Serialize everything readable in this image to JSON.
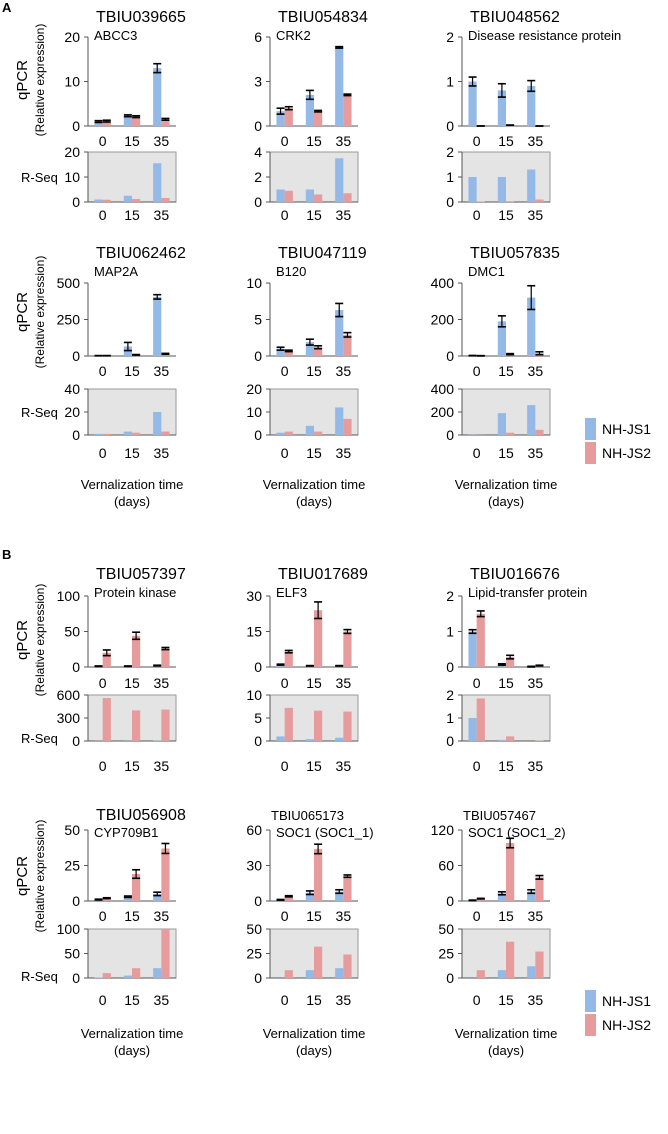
{
  "figure": {
    "time_points": [
      "0",
      "15",
      "35"
    ],
    "x_label_line1": "Vernalization time",
    "x_label_line2": "(days)",
    "qpcr_label": "qPCR",
    "qpcr_sublabel": "(Relative expression)",
    "rseq_label": "R-Seq",
    "legend": [
      {
        "name": "NH-JS1",
        "color": "#94b9e6"
      },
      {
        "name": "NH-JS2",
        "color": "#e69c9c"
      }
    ],
    "colors": {
      "js1": "#94b9e6",
      "js2": "#e69c9c",
      "rseq_bg": "#e4e4e4",
      "error": "#000000"
    }
  },
  "panels": [
    {
      "label": "A"
    },
    {
      "label": "B"
    }
  ],
  "chart_data": [
    {
      "type": "bar",
      "panel": "A",
      "gene_id": "TBIU039665",
      "gene_name": "ABCC3",
      "categories": [
        "0",
        "15",
        "35"
      ],
      "qpcr": {
        "ylim": [
          0,
          20
        ],
        "ticks": [
          0,
          10,
          20
        ],
        "series": [
          {
            "name": "NH-JS1",
            "values": [
              1.0,
              2.3,
              13.0
            ],
            "errors": [
              0.2,
              0.2,
              1.0
            ]
          },
          {
            "name": "NH-JS2",
            "values": [
              1.1,
              2.1,
              1.5
            ],
            "errors": [
              0.2,
              0.2,
              0.2
            ]
          }
        ]
      },
      "rseq": {
        "ylim": [
          0,
          20
        ],
        "ticks": [
          0,
          10,
          20
        ],
        "series": [
          {
            "name": "NH-JS1",
            "values": [
              1.0,
              2.5,
              15.5
            ]
          },
          {
            "name": "NH-JS2",
            "values": [
              0.9,
              1.2,
              1.6
            ]
          }
        ]
      }
    },
    {
      "type": "bar",
      "panel": "A",
      "gene_id": "TBIU054834",
      "gene_name": "CRK2",
      "categories": [
        "0",
        "15",
        "35"
      ],
      "qpcr": {
        "ylim": [
          0,
          6
        ],
        "ticks": [
          0,
          3,
          6
        ],
        "series": [
          {
            "name": "NH-JS1",
            "values": [
              1.0,
              2.1,
              5.3
            ],
            "errors": [
              0.2,
              0.3,
              0.05
            ]
          },
          {
            "name": "NH-JS2",
            "values": [
              1.2,
              1.0,
              2.1
            ],
            "errors": [
              0.1,
              0.05,
              0.05
            ]
          }
        ]
      },
      "rseq": {
        "ylim": [
          0,
          4
        ],
        "ticks": [
          0,
          2,
          4
        ],
        "series": [
          {
            "name": "NH-JS1",
            "values": [
              1.0,
              1.0,
              3.5
            ]
          },
          {
            "name": "NH-JS2",
            "values": [
              0.9,
              0.6,
              0.7
            ]
          }
        ]
      }
    },
    {
      "type": "bar",
      "panel": "A",
      "gene_id": "TBIU048562",
      "gene_name": "Disease resistance protein",
      "categories": [
        "0",
        "15",
        "35"
      ],
      "qpcr": {
        "ylim": [
          0,
          2
        ],
        "ticks": [
          0,
          1,
          2
        ],
        "series": [
          {
            "name": "NH-JS1",
            "values": [
              1.0,
              0.8,
              0.9
            ],
            "errors": [
              0.1,
              0.15,
              0.12
            ]
          },
          {
            "name": "NH-JS2",
            "values": [
              0.0,
              0.02,
              0.0
            ],
            "errors": [
              0,
              0,
              0
            ]
          }
        ]
      },
      "rseq": {
        "ylim": [
          0,
          2
        ],
        "ticks": [
          0,
          1,
          2
        ],
        "series": [
          {
            "name": "NH-JS1",
            "values": [
              1.0,
              1.0,
              1.3
            ]
          },
          {
            "name": "NH-JS2",
            "values": [
              0.02,
              0.03,
              0.1
            ]
          }
        ]
      }
    },
    {
      "type": "bar",
      "panel": "A",
      "gene_id": "TBIU062462",
      "gene_name": "MAP2A",
      "categories": [
        "0",
        "15",
        "35"
      ],
      "qpcr": {
        "ylim": [
          0,
          500
        ],
        "ticks": [
          0,
          250,
          500
        ],
        "series": [
          {
            "name": "NH-JS1",
            "values": [
              2,
              65,
              405
            ],
            "errors": [
              1,
              28,
              15
            ]
          },
          {
            "name": "NH-JS2",
            "values": [
              2,
              8,
              15
            ],
            "errors": [
              1,
              2,
              3
            ]
          }
        ]
      },
      "rseq": {
        "ylim": [
          0,
          40
        ],
        "ticks": [
          0,
          20,
          40
        ],
        "series": [
          {
            "name": "NH-JS1",
            "values": [
              1,
              3,
              20
            ]
          },
          {
            "name": "NH-JS2",
            "values": [
              1,
              2,
              3
            ]
          }
        ]
      }
    },
    {
      "type": "bar",
      "panel": "A",
      "gene_id": "TBIU047119",
      "gene_name": "B120",
      "categories": [
        "0",
        "15",
        "35"
      ],
      "qpcr": {
        "ylim": [
          0,
          10
        ],
        "ticks": [
          0,
          5,
          10
        ],
        "series": [
          {
            "name": "NH-JS1",
            "values": [
              1.0,
              1.9,
              6.3
            ],
            "errors": [
              0.2,
              0.4,
              0.9
            ]
          },
          {
            "name": "NH-JS2",
            "values": [
              0.7,
              1.2,
              2.9
            ],
            "errors": [
              0.1,
              0.2,
              0.3
            ]
          }
        ]
      },
      "rseq": {
        "ylim": [
          0,
          20
        ],
        "ticks": [
          0,
          10,
          20
        ],
        "series": [
          {
            "name": "NH-JS1",
            "values": [
              1,
              4,
              12
            ]
          },
          {
            "name": "NH-JS2",
            "values": [
              1.5,
              1.5,
              7
            ]
          }
        ]
      }
    },
    {
      "type": "bar",
      "panel": "A",
      "gene_id": "TBIU057835",
      "gene_name": "DMC1",
      "categories": [
        "0",
        "15",
        "35"
      ],
      "qpcr": {
        "ylim": [
          0,
          400
        ],
        "ticks": [
          0,
          200,
          400
        ],
        "series": [
          {
            "name": "NH-JS1",
            "values": [
              2,
              190,
              320
            ],
            "errors": [
              1,
              30,
              65
            ]
          },
          {
            "name": "NH-JS2",
            "values": [
              1,
              10,
              15
            ],
            "errors": [
              1,
              3,
              8
            ]
          }
        ]
      },
      "rseq": {
        "ylim": [
          0,
          400
        ],
        "ticks": [
          0,
          200,
          400
        ],
        "series": [
          {
            "name": "NH-JS1",
            "values": [
              2,
              190,
              260
            ]
          },
          {
            "name": "NH-JS2",
            "values": [
              1,
              20,
              45
            ]
          }
        ]
      }
    },
    {
      "type": "bar",
      "panel": "B",
      "gene_id": "TBIU057397",
      "gene_name": "Protein kinase",
      "categories": [
        "0",
        "15",
        "35"
      ],
      "qpcr": {
        "ylim": [
          0,
          100
        ],
        "ticks": [
          0,
          50,
          100
        ],
        "series": [
          {
            "name": "NH-JS1",
            "values": [
              1,
              1,
              2
            ],
            "errors": [
              0.5,
              0.5,
              0.5
            ]
          },
          {
            "name": "NH-JS2",
            "values": [
              20,
              44,
              26
            ],
            "errors": [
              4,
              5,
              1.5
            ]
          }
        ]
      },
      "rseq": {
        "ylim": [
          0,
          600
        ],
        "ticks": [
          0,
          300,
          600
        ],
        "series": [
          {
            "name": "NH-JS1",
            "values": [
              2,
              2,
              5
            ]
          },
          {
            "name": "NH-JS2",
            "values": [
              560,
              400,
              410
            ]
          }
        ]
      }
    },
    {
      "type": "bar",
      "panel": "B",
      "gene_id": "TBIU017689",
      "gene_name": "ELF3",
      "categories": [
        "0",
        "15",
        "35"
      ],
      "qpcr": {
        "ylim": [
          0,
          30
        ],
        "ticks": [
          0,
          15,
          30
        ],
        "series": [
          {
            "name": "NH-JS1",
            "values": [
              1.0,
              0.5,
              0.5
            ],
            "errors": [
              0.2,
              0.1,
              0.1
            ]
          },
          {
            "name": "NH-JS2",
            "values": [
              6.5,
              24,
              15
            ],
            "errors": [
              0.5,
              3.5,
              0.8
            ]
          }
        ]
      },
      "rseq": {
        "ylim": [
          0,
          10
        ],
        "ticks": [
          0,
          5,
          10
        ],
        "series": [
          {
            "name": "NH-JS1",
            "values": [
              1.0,
              0.4,
              0.7
            ]
          },
          {
            "name": "NH-JS2",
            "values": [
              7.2,
              6.6,
              6.4
            ]
          }
        ]
      }
    },
    {
      "type": "bar",
      "panel": "B",
      "gene_id": "TBIU016676",
      "gene_name": "Lipid-transfer protein",
      "categories": [
        "0",
        "15",
        "35"
      ],
      "qpcr": {
        "ylim": [
          0,
          2
        ],
        "ticks": [
          0,
          1,
          2
        ],
        "series": [
          {
            "name": "NH-JS1",
            "values": [
              1.0,
              0.07,
              0.01
            ],
            "errors": [
              0.05,
              0.02,
              0.01
            ]
          },
          {
            "name": "NH-JS2",
            "values": [
              1.5,
              0.28,
              0.04
            ],
            "errors": [
              0.08,
              0.05,
              0.01
            ]
          }
        ]
      },
      "rseq": {
        "ylim": [
          0,
          2
        ],
        "ticks": [
          0,
          1,
          2
        ],
        "series": [
          {
            "name": "NH-JS1",
            "values": [
              1.0,
              0.05,
              0.0
            ]
          },
          {
            "name": "NH-JS2",
            "values": [
              1.85,
              0.2,
              0.02
            ]
          }
        ]
      }
    },
    {
      "type": "bar",
      "panel": "B",
      "gene_id": "TBIU056908",
      "gene_name": "CYP709B1",
      "categories": [
        "0",
        "15",
        "35"
      ],
      "qpcr": {
        "ylim": [
          0,
          50
        ],
        "ticks": [
          0,
          25,
          50
        ],
        "series": [
          {
            "name": "NH-JS1",
            "values": [
              1,
              3,
              5
            ],
            "errors": [
              0.3,
              0.5,
              1.2
            ]
          },
          {
            "name": "NH-JS2",
            "values": [
              2,
              19,
              37
            ],
            "errors": [
              0.3,
              3,
              3.5
            ]
          }
        ]
      },
      "rseq": {
        "ylim": [
          0,
          100
        ],
        "ticks": [
          0,
          50,
          100
        ],
        "series": [
          {
            "name": "NH-JS1",
            "values": [
              1,
              5,
              20
            ]
          },
          {
            "name": "NH-JS2",
            "values": [
              10,
              20,
              100
            ]
          }
        ]
      }
    },
    {
      "type": "bar",
      "panel": "B",
      "gene_id": "TBIU065173",
      "gene_name": "SOC1 (SOC1_1)",
      "categories": [
        "0",
        "15",
        "35"
      ],
      "qpcr": {
        "ylim": [
          0,
          60
        ],
        "ticks": [
          0,
          30,
          60
        ],
        "series": [
          {
            "name": "NH-JS1",
            "values": [
              1,
              7,
              8
            ],
            "errors": [
              0.3,
              1.5,
              1.5
            ]
          },
          {
            "name": "NH-JS2",
            "values": [
              4,
              44,
              21
            ],
            "errors": [
              0.5,
              4,
              1
            ]
          }
        ]
      },
      "rseq": {
        "ylim": [
          0,
          50
        ],
        "ticks": [
          0,
          25,
          50
        ],
        "series": [
          {
            "name": "NH-JS1",
            "values": [
              0,
              8,
              10
            ]
          },
          {
            "name": "NH-JS2",
            "values": [
              8,
              32,
              24
            ]
          }
        ]
      }
    },
    {
      "type": "bar",
      "panel": "B",
      "gene_id": "TBIU057467",
      "gene_name": "SOC1 (SOC1_2)",
      "categories": [
        "0",
        "15",
        "35"
      ],
      "qpcr": {
        "ylim": [
          0,
          120
        ],
        "ticks": [
          0,
          60,
          120
        ],
        "series": [
          {
            "name": "NH-JS1",
            "values": [
              1,
              13,
              16
            ],
            "errors": [
              0.5,
              2.5,
              3
            ]
          },
          {
            "name": "NH-JS2",
            "values": [
              4,
              98,
              40
            ],
            "errors": [
              0.5,
              8,
              3
            ]
          }
        ]
      },
      "rseq": {
        "ylim": [
          0,
          50
        ],
        "ticks": [
          0,
          25,
          50
        ],
        "series": [
          {
            "name": "NH-JS1",
            "values": [
              0,
              8,
              12
            ]
          },
          {
            "name": "NH-JS2",
            "values": [
              8,
              37,
              27
            ]
          }
        ]
      }
    }
  ]
}
